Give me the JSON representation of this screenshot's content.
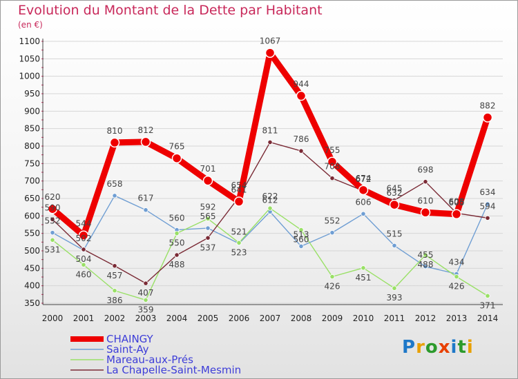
{
  "chart_data": {
    "type": "line",
    "title": "Evolution du Montant de la Dette par Habitant",
    "subtitle": "(en €)",
    "xlabel": "",
    "ylabel": "",
    "ylim": [
      350,
      1100
    ],
    "yticks": [
      350,
      400,
      450,
      500,
      550,
      600,
      650,
      700,
      750,
      800,
      850,
      900,
      950,
      1000,
      1050,
      1100
    ],
    "categories": [
      "2000",
      "2001",
      "2002",
      "2003",
      "2004",
      "2005",
      "2006",
      "2007",
      "2008",
      "2009",
      "2010",
      "2011",
      "2012",
      "2013",
      "2014"
    ],
    "grid": "horizontal",
    "legend_position": "bottom-left",
    "series": [
      {
        "name": "CHAINGY",
        "color": "#ee0000",
        "values": [
          620,
          544,
          810,
          812,
          765,
          701,
          641,
          1067,
          944,
          755,
          674,
          632,
          610,
          605,
          882
        ]
      },
      {
        "name": "Saint-Ay",
        "color": "#6f9ed3",
        "values": [
          552,
          502,
          658,
          617,
          560,
          565,
          521,
          612,
          513,
          552,
          606,
          515,
          455,
          434,
          634
        ]
      },
      {
        "name": "Mareau-aux-Prés",
        "color": "#99e066",
        "values": [
          531,
          460,
          386,
          359,
          550,
          592,
          523,
          622,
          560,
          426,
          451,
          393,
          488,
          426,
          371
        ]
      },
      {
        "name": "La Chapelle-Saint-Mesmin",
        "color": "#7a2a35",
        "values": [
          590,
          504,
          457,
          407,
          488,
          537,
          654,
          811,
          786,
          708,
          672,
          645,
          698,
          608,
          594
        ]
      }
    ]
  },
  "logo": {
    "letters": [
      "P",
      "r",
      "o",
      "x",
      "i",
      "t",
      "i"
    ],
    "colors": [
      "#1e78c8",
      "#e8a000",
      "#2c9a2c",
      "#e84000",
      "#1e78c8",
      "#2c9a2c",
      "#e8a000"
    ]
  }
}
